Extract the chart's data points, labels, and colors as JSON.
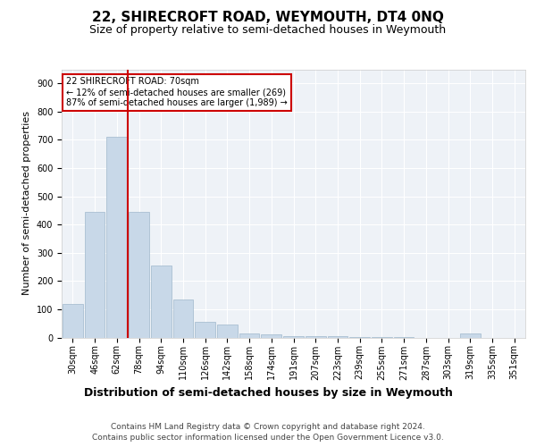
{
  "title1": "22, SHIRECROFT ROAD, WEYMOUTH, DT4 0NQ",
  "title2": "Size of property relative to semi-detached houses in Weymouth",
  "xlabel": "Distribution of semi-detached houses by size in Weymouth",
  "ylabel": "Number of semi-detached properties",
  "footer1": "Contains HM Land Registry data © Crown copyright and database right 2024.",
  "footer2": "Contains public sector information licensed under the Open Government Licence v3.0.",
  "annotation_line1": "22 SHIRECROFT ROAD: 70sqm",
  "annotation_line2": "← 12% of semi-detached houses are smaller (269)",
  "annotation_line3": "87% of semi-detached houses are larger (1,989) →",
  "bar_labels": [
    "30sqm",
    "46sqm",
    "62sqm",
    "78sqm",
    "94sqm",
    "110sqm",
    "126sqm",
    "142sqm",
    "158sqm",
    "174sqm",
    "191sqm",
    "207sqm",
    "223sqm",
    "239sqm",
    "255sqm",
    "271sqm",
    "287sqm",
    "303sqm",
    "319sqm",
    "335sqm",
    "351sqm"
  ],
  "bar_values": [
    120,
    445,
    710,
    445,
    255,
    135,
    55,
    45,
    15,
    10,
    5,
    5,
    5,
    2,
    2,
    2,
    0,
    0,
    15,
    0,
    0
  ],
  "bar_color": "#c8d8e8",
  "bar_edgecolor": "#a0b8cc",
  "red_line_x": 2.5,
  "red_line_color": "#cc0000",
  "annotation_box_color": "#cc0000",
  "ylim": [
    0,
    950
  ],
  "yticks": [
    0,
    100,
    200,
    300,
    400,
    500,
    600,
    700,
    800,
    900
  ],
  "bg_color": "#eef2f7",
  "grid_color": "#ffffff",
  "title1_fontsize": 11,
  "title2_fontsize": 9,
  "xlabel_fontsize": 9,
  "ylabel_fontsize": 8,
  "tick_fontsize": 7,
  "footer_fontsize": 6.5,
  "ann_fontsize": 7
}
